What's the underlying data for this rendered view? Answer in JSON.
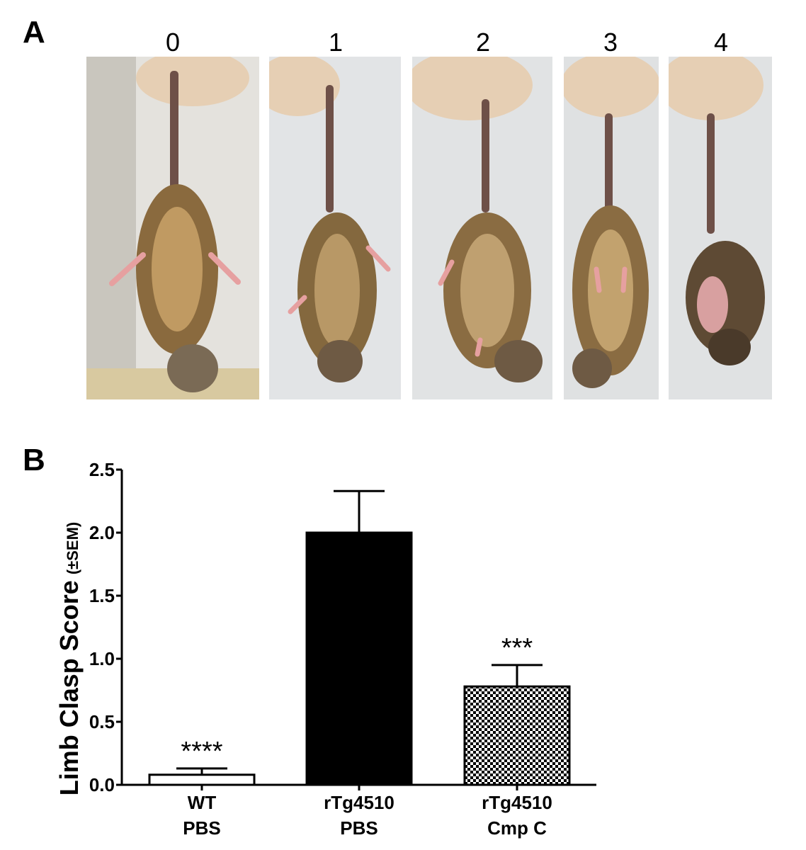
{
  "panels": {
    "a_label": "A",
    "b_label": "B"
  },
  "photos": [
    {
      "score": "0",
      "description": "mouse suspended by tail, hindlimbs splayed outward"
    },
    {
      "score": "1",
      "description": "mouse suspended by tail, one hindlimb partially retracted"
    },
    {
      "score": "2",
      "description": "mouse suspended by tail, both hindlimbs partially retracted"
    },
    {
      "score": "3",
      "description": "mouse suspended by tail, hindlimbs retracted toward abdomen"
    },
    {
      "score": "4",
      "description": "mouse suspended by tail, limbs fully clasped"
    }
  ],
  "chart_data": {
    "type": "bar",
    "ylabel_main": "Limb Clasp Score",
    "ylabel_sub": "(±SEM)",
    "ylim": [
      0,
      2.5
    ],
    "yticks": [
      "0.0",
      "0.5",
      "1.0",
      "1.5",
      "2.0",
      "2.5"
    ],
    "ytick_values": [
      0,
      0.5,
      1.0,
      1.5,
      2.0,
      2.5
    ],
    "categories": [
      {
        "line1": "WT",
        "line2": "PBS"
      },
      {
        "line1": "rTg4510",
        "line2": "PBS"
      },
      {
        "line1": "rTg4510",
        "line2": "Cmp C"
      }
    ],
    "values": [
      0.08,
      2.0,
      0.78
    ],
    "sem": [
      0.05,
      0.33,
      0.17
    ],
    "fills": [
      "white",
      "black",
      "checker"
    ],
    "significance": [
      "****",
      "",
      "***"
    ]
  }
}
